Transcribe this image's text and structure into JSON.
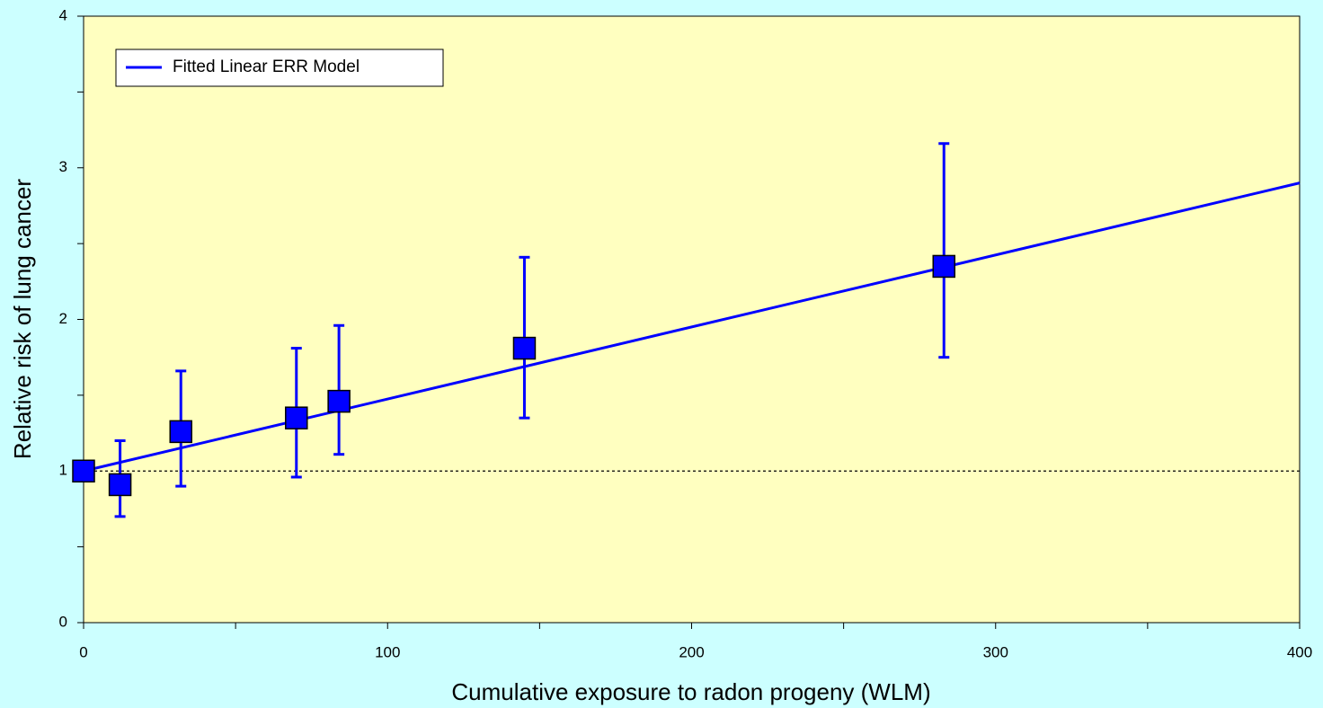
{
  "chart_data": {
    "type": "scatter",
    "xlabel": "Cumulative exposure to radon progeny (WLM)",
    "ylabel": "Relative risk of lung cancer",
    "xlim": [
      0,
      400
    ],
    "ylim": [
      0,
      4
    ],
    "xticks": [
      0,
      100,
      200,
      300,
      400
    ],
    "yticks": [
      0,
      1,
      2,
      3,
      4
    ],
    "xminorticks": [
      50,
      150,
      250,
      350
    ],
    "yminorticks": [
      0.5,
      1.5,
      2.5,
      3.5
    ],
    "reference_line": 1,
    "legend": "upper left",
    "series": [
      {
        "name": "Fitted Linear ERR Model",
        "type": "line",
        "color": "#0000ff",
        "x": [
          0,
          400
        ],
        "values": [
          1,
          2.9
        ]
      },
      {
        "type": "scatter",
        "color": "#0000ff",
        "x": [
          0,
          12,
          32,
          70,
          84,
          145,
          283
        ],
        "values": [
          1,
          0.91,
          1.26,
          1.35,
          1.46,
          1.81,
          2.35
        ],
        "lower": [
          null,
          0.7,
          0.9,
          0.96,
          1.11,
          1.35,
          1.75
        ],
        "upper": [
          null,
          1.2,
          1.66,
          1.81,
          1.96,
          2.41,
          3.16
        ]
      }
    ]
  }
}
